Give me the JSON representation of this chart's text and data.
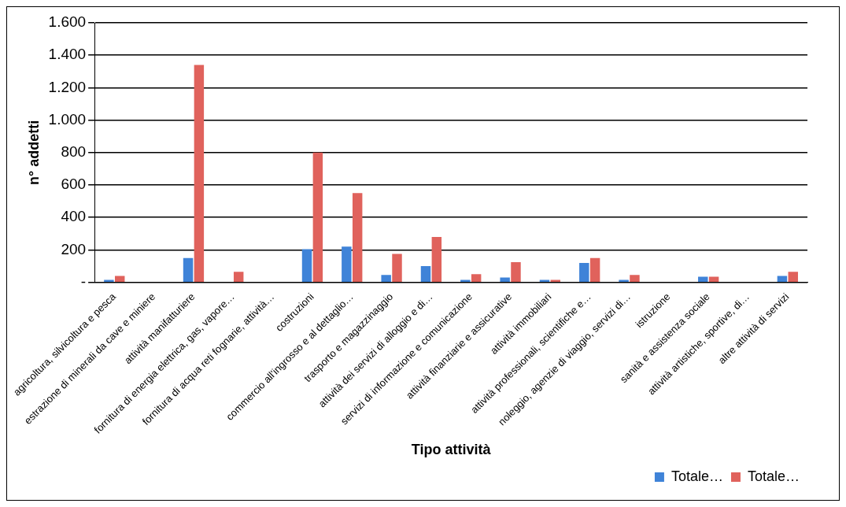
{
  "chart_data": {
    "type": "bar",
    "xlabel": "Tipo attività",
    "ylabel": "n° addetti",
    "categories": [
      "agricoltura, silvicoltura e pesca",
      "estrazione di minerali da cave e miniere",
      "attività manifatturiere",
      "fornitura di energia elettrica, gas, vapore…",
      "fornitura di acqua reti fognarie, attività…",
      "costruzioni",
      "commercio all'ingrosso e al dettaglio…",
      "trasporto e magazzinaggio",
      "attività dei servizi di alloggio e di…",
      "servizi di informazione e comunicazione",
      "attività finanziarie e assicurative",
      "attività immobiliari",
      "attività professionali, scientifiche e…",
      "noleggio, agenzie di viaggio, servizi di…",
      "istruzione",
      "sanità e assistenza sociale",
      "attività artistiche, sportive, di…",
      "altre attività di servizi"
    ],
    "series": [
      {
        "name": "Totale…",
        "color": "#3f83d8",
        "values": [
          15,
          0,
          150,
          0,
          null,
          205,
          220,
          45,
          100,
          15,
          30,
          15,
          120,
          15,
          0,
          35,
          null,
          40
        ]
      },
      {
        "name": "Totale…",
        "color": "#e0625c",
        "values": [
          40,
          0,
          1340,
          65,
          null,
          800,
          550,
          175,
          280,
          50,
          125,
          15,
          150,
          45,
          0,
          35,
          null,
          65
        ]
      }
    ],
    "ylim": [
      0,
      1600
    ],
    "yticks": [
      {
        "value": 0,
        "label": "-"
      },
      200,
      400,
      600,
      800,
      {
        "value": 1000,
        "label": "1.000"
      },
      {
        "value": 1200,
        "label": "1.200"
      },
      {
        "value": 1400,
        "label": "1.400"
      },
      {
        "value": 1600,
        "label": "1.600"
      }
    ],
    "grid": "y",
    "legend": "bottom right"
  }
}
